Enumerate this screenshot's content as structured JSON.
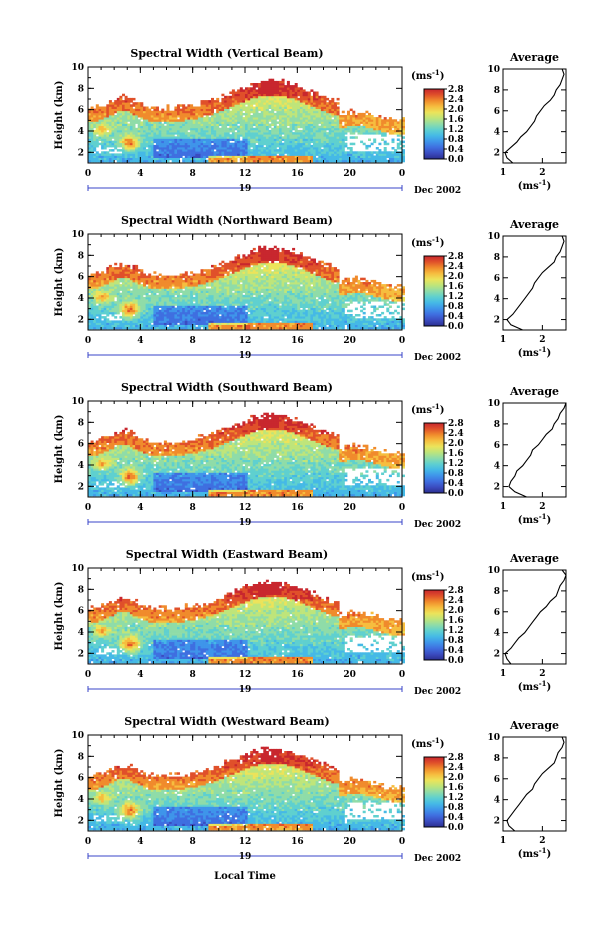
{
  "figure": {
    "unit_label": "(ms",
    "unit_exponent": "-1",
    "date_label": "Dec 2002",
    "day_label": "19",
    "xlabel": "Local Time",
    "colorscale": [
      "#2b2e8f",
      "#3b4cc0",
      "#3f6fe0",
      "#3f95ea",
      "#45b9e6",
      "#5fd0cf",
      "#8fdca8",
      "#bfe57a",
      "#ece35a",
      "#f6bd3f",
      "#f08b2c",
      "#e0502a",
      "#c8272e"
    ]
  },
  "chart_data": [
    {
      "type": "heatmap",
      "title": "Spectral Width (Vertical Beam)",
      "ylabel": "Height (km)",
      "xlim": [
        0,
        24
      ],
      "ylim": [
        1,
        10
      ],
      "xticks": [
        "0",
        "4",
        "8",
        "12",
        "16",
        "20",
        "0"
      ],
      "yticks": [
        "2",
        "4",
        "6",
        "8",
        "10"
      ],
      "colorbar": {
        "min": 0.0,
        "max": 2.8,
        "ticks": [
          "2.8",
          "2.4",
          "2.0",
          "1.6",
          "1.2",
          "0.8",
          "0.4",
          "0.0"
        ]
      },
      "average": {
        "title": "Average",
        "xlim": [
          1,
          2.6
        ],
        "xticks": [
          "1",
          "2"
        ],
        "yticks": [
          "2",
          "4",
          "6",
          "8",
          "10"
        ],
        "heights": [
          1.0,
          1.5,
          2.0,
          2.5,
          3.0,
          3.5,
          4.0,
          4.5,
          5.0,
          5.5,
          6.0,
          6.5,
          7.0,
          7.5,
          8.0,
          8.5,
          9.0,
          9.5,
          10.0
        ],
        "values": [
          1.25,
          1.1,
          1.05,
          1.2,
          1.35,
          1.45,
          1.6,
          1.7,
          1.8,
          1.85,
          1.95,
          2.05,
          2.2,
          2.3,
          2.35,
          2.45,
          2.5,
          2.55,
          2.5
        ]
      }
    },
    {
      "type": "heatmap",
      "title": "Spectral Width (Northward Beam)",
      "ylabel": "Height (km)",
      "xlim": [
        0,
        24
      ],
      "ylim": [
        1,
        10
      ],
      "xticks": [
        "0",
        "4",
        "8",
        "12",
        "16",
        "20",
        "0"
      ],
      "yticks": [
        "2",
        "4",
        "6",
        "8",
        "10"
      ],
      "colorbar": {
        "min": 0.0,
        "max": 2.8,
        "ticks": [
          "2.8",
          "2.4",
          "2.0",
          "1.6",
          "1.2",
          "0.8",
          "0.4",
          "0.0"
        ]
      },
      "average": {
        "title": "Average",
        "xlim": [
          1,
          2.6
        ],
        "xticks": [
          "1",
          "2"
        ],
        "yticks": [
          "2",
          "4",
          "6",
          "8",
          "10"
        ],
        "heights": [
          1.0,
          1.5,
          2.0,
          2.5,
          3.0,
          3.5,
          4.0,
          4.5,
          5.0,
          5.5,
          6.0,
          6.5,
          7.0,
          7.5,
          8.0,
          8.5,
          9.0,
          9.5,
          10.0
        ],
        "values": [
          1.5,
          1.2,
          1.1,
          1.25,
          1.35,
          1.45,
          1.55,
          1.65,
          1.75,
          1.8,
          1.9,
          2.0,
          2.15,
          2.3,
          2.35,
          2.45,
          2.5,
          2.55,
          2.5
        ]
      }
    },
    {
      "type": "heatmap",
      "title": "Spectral Width (Southward Beam)",
      "ylabel": "Height (km)",
      "xlim": [
        0,
        24
      ],
      "ylim": [
        1,
        10
      ],
      "xticks": [
        "0",
        "4",
        "8",
        "12",
        "16",
        "20",
        "0"
      ],
      "yticks": [
        "2",
        "4",
        "6",
        "8",
        "10"
      ],
      "colorbar": {
        "min": 0.0,
        "max": 2.8,
        "ticks": [
          "2.8",
          "2.4",
          "2.0",
          "1.6",
          "1.2",
          "0.8",
          "0.4",
          "0.0"
        ]
      },
      "average": {
        "title": "Average",
        "xlim": [
          1,
          2.6
        ],
        "xticks": [
          "1",
          "2"
        ],
        "yticks": [
          "2",
          "4",
          "6",
          "8",
          "10"
        ],
        "heights": [
          1.0,
          1.5,
          2.0,
          2.5,
          3.0,
          3.5,
          4.0,
          4.5,
          5.0,
          5.5,
          6.0,
          6.5,
          7.0,
          7.5,
          8.0,
          8.5,
          9.0,
          9.5,
          10.0
        ],
        "values": [
          1.6,
          1.3,
          1.15,
          1.2,
          1.3,
          1.35,
          1.5,
          1.6,
          1.7,
          1.75,
          1.9,
          2.0,
          2.1,
          2.25,
          2.3,
          2.4,
          2.45,
          2.55,
          2.6
        ]
      }
    },
    {
      "type": "heatmap",
      "title": "Spectral Width (Eastward Beam)",
      "ylabel": "Height (km)",
      "xlim": [
        0,
        24
      ],
      "ylim": [
        1,
        10
      ],
      "xticks": [
        "0",
        "4",
        "8",
        "12",
        "16",
        "20",
        "0"
      ],
      "yticks": [
        "2",
        "4",
        "6",
        "8",
        "10"
      ],
      "colorbar": {
        "min": 0.0,
        "max": 2.8,
        "ticks": [
          "2.8",
          "2.4",
          "2.0",
          "1.6",
          "1.2",
          "0.8",
          "0.4",
          "0.0"
        ]
      },
      "average": {
        "title": "Average",
        "xlim": [
          1,
          2.6
        ],
        "xticks": [
          "1",
          "2"
        ],
        "yticks": [
          "2",
          "4",
          "6",
          "8",
          "10"
        ],
        "heights": [
          1.0,
          1.5,
          2.0,
          2.5,
          3.0,
          3.5,
          4.0,
          4.5,
          5.0,
          5.5,
          6.0,
          6.5,
          7.0,
          7.5,
          8.0,
          8.5,
          9.0,
          9.5,
          10.0
        ],
        "values": [
          1.2,
          1.1,
          1.05,
          1.2,
          1.3,
          1.4,
          1.55,
          1.65,
          1.75,
          1.85,
          1.95,
          2.1,
          2.2,
          2.35,
          2.4,
          2.45,
          2.55,
          2.6,
          2.5
        ]
      }
    },
    {
      "type": "heatmap",
      "title": "Spectral Width (Westward Beam)",
      "ylabel": "Height (km)",
      "xlim": [
        0,
        24
      ],
      "ylim": [
        1,
        10
      ],
      "xticks": [
        "0",
        "4",
        "8",
        "12",
        "16",
        "20",
        "0"
      ],
      "yticks": [
        "2",
        "4",
        "6",
        "8",
        "10"
      ],
      "colorbar": {
        "min": 0.0,
        "max": 2.8,
        "ticks": [
          "2.8",
          "2.4",
          "2.0",
          "1.6",
          "1.2",
          "0.8",
          "0.4",
          "0.0"
        ]
      },
      "average": {
        "title": "Average",
        "xlim": [
          1,
          2.6
        ],
        "xticks": [
          "1",
          "2"
        ],
        "yticks": [
          "2",
          "4",
          "6",
          "8",
          "10"
        ],
        "heights": [
          1.0,
          1.5,
          2.0,
          2.5,
          3.0,
          3.5,
          4.0,
          4.5,
          5.0,
          5.5,
          6.0,
          6.5,
          7.0,
          7.5,
          8.0,
          8.5,
          9.0,
          9.5,
          10.0
        ],
        "values": [
          1.3,
          1.15,
          1.1,
          1.2,
          1.3,
          1.4,
          1.5,
          1.6,
          1.75,
          1.8,
          1.9,
          2.0,
          2.15,
          2.3,
          2.35,
          2.4,
          2.5,
          2.55,
          2.5
        ]
      }
    }
  ]
}
